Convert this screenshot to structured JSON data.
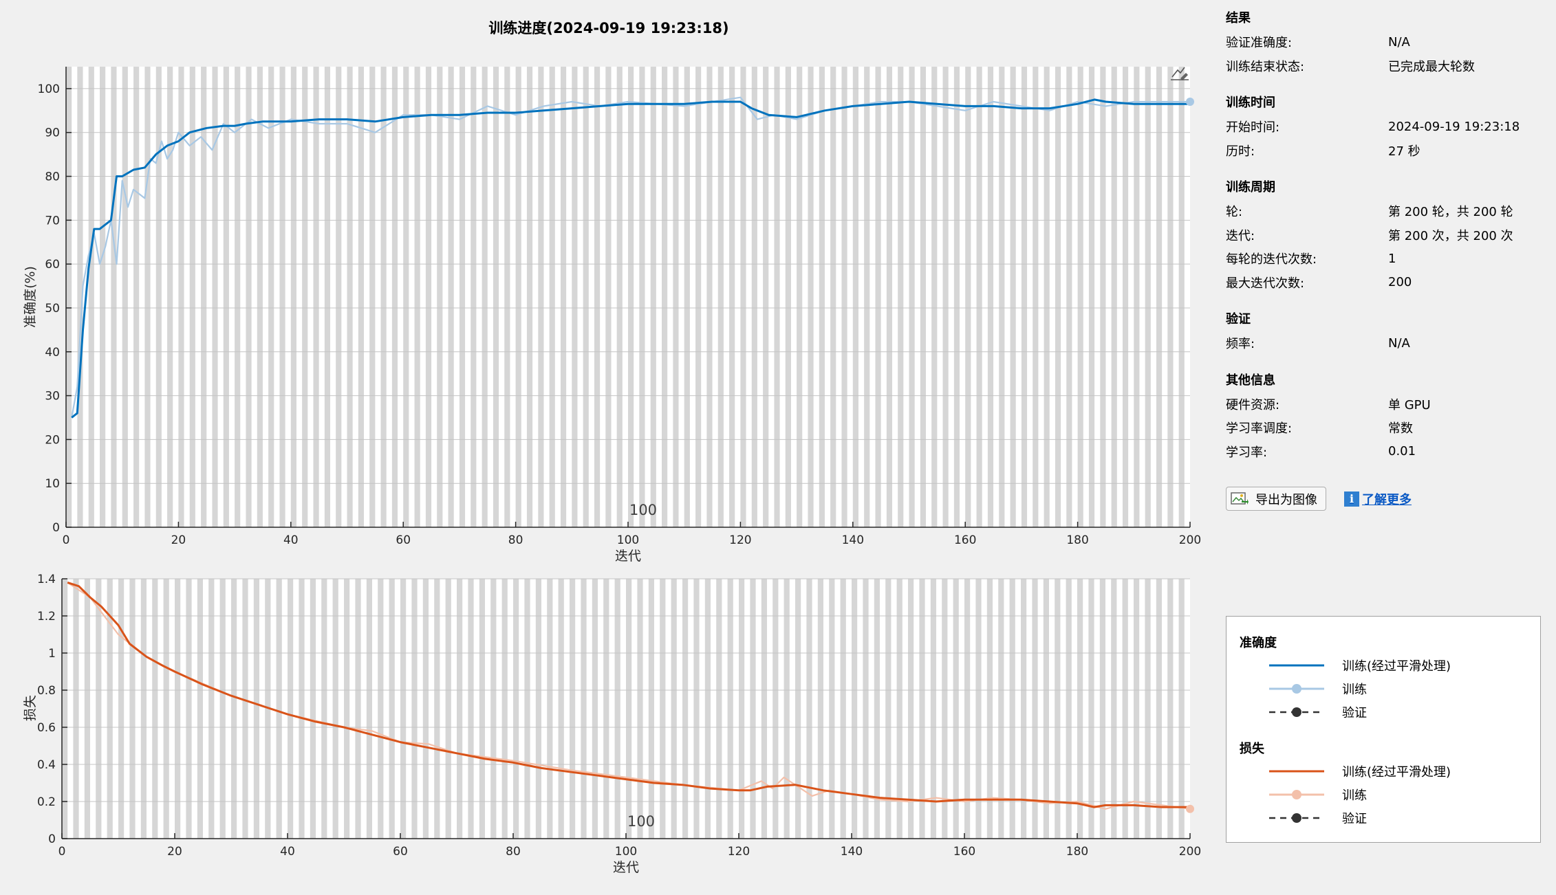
{
  "title": "训练进度(2024-09-19 19:23:18)",
  "colors": {
    "acc_smooth": "#0072bd",
    "acc_raw": "#a8c8e4",
    "loss_smooth": "#d95319",
    "loss_raw": "#f3c0aa",
    "stripe": "#d6d6d6"
  },
  "chart_data": [
    {
      "type": "line",
      "xlabel": "迭代",
      "ylabel": "准确度(%)",
      "xlim": [
        0,
        200
      ],
      "ylim": [
        0,
        105
      ],
      "xticks": [
        0,
        20,
        40,
        60,
        80,
        100,
        120,
        140,
        160,
        180,
        200
      ],
      "yticks": [
        0,
        10,
        20,
        30,
        40,
        50,
        60,
        70,
        80,
        90,
        100
      ],
      "epoch_marker": "100",
      "grid": true,
      "series": [
        {
          "name": "训练(经过平滑处理)",
          "x": [
            1,
            2,
            3,
            4,
            5,
            6,
            8,
            9,
            10,
            12,
            14,
            16,
            18,
            20,
            22,
            25,
            28,
            30,
            32,
            35,
            40,
            45,
            50,
            55,
            60,
            65,
            70,
            75,
            80,
            85,
            90,
            95,
            100,
            105,
            110,
            115,
            120,
            122,
            125,
            130,
            135,
            140,
            145,
            150,
            155,
            160,
            165,
            170,
            175,
            180,
            183,
            185,
            190,
            195,
            200
          ],
          "values": [
            25,
            26,
            45,
            59,
            68,
            68,
            70,
            80,
            80,
            81.5,
            82,
            85,
            87,
            88,
            90,
            91,
            91.5,
            91.5,
            92,
            92.5,
            92.5,
            93,
            93,
            92.5,
            93.5,
            94,
            94,
            94.5,
            94.5,
            95,
            95.5,
            96,
            96.5,
            96.5,
            96.5,
            97,
            97,
            95.5,
            94,
            93.5,
            95,
            96,
            96.5,
            97,
            96.5,
            96,
            96,
            95.5,
            95.5,
            96.5,
            97.5,
            97,
            96.5,
            96.5,
            96.5
          ]
        },
        {
          "name": "训练",
          "x": [
            1,
            2,
            3,
            4,
            5,
            6,
            7,
            8,
            9,
            10,
            11,
            12,
            13,
            14,
            15,
            16,
            17,
            18,
            19,
            20,
            22,
            24,
            26,
            28,
            30,
            33,
            36,
            40,
            45,
            50,
            55,
            60,
            65,
            70,
            75,
            80,
            85,
            90,
            95,
            100,
            110,
            120,
            123,
            126,
            130,
            135,
            140,
            145,
            150,
            155,
            160,
            165,
            170,
            175,
            180,
            185,
            190,
            195,
            200
          ],
          "values": [
            25,
            32,
            55,
            62,
            67,
            60,
            64,
            70,
            60,
            79,
            73,
            77,
            76,
            75,
            84,
            83,
            88,
            84,
            86,
            90,
            87,
            89,
            86,
            92,
            90,
            93,
            91,
            93,
            92,
            92,
            90,
            94,
            94,
            93,
            96,
            94,
            96,
            97,
            96,
            97,
            96,
            98,
            93,
            94,
            93,
            95,
            96,
            97,
            97,
            96,
            95,
            97,
            96,
            95,
            97,
            96,
            97,
            97,
            97
          ]
        },
        {
          "name": "验证",
          "x": [],
          "values": []
        }
      ]
    },
    {
      "type": "line",
      "xlabel": "迭代",
      "ylabel": "损失",
      "xlim": [
        0,
        200
      ],
      "ylim": [
        0,
        1.4
      ],
      "xticks": [
        0,
        20,
        40,
        60,
        80,
        100,
        120,
        140,
        160,
        180,
        200
      ],
      "yticks": [
        0,
        0.2,
        0.4,
        0.6,
        0.8,
        1,
        1.2,
        1.4
      ],
      "ytick_labels": [
        "0",
        "0.2",
        "0.4",
        "0.6",
        "0.8",
        "1",
        "1.2",
        "1.4"
      ],
      "epoch_marker": "100",
      "grid": true,
      "series": [
        {
          "name": "训练(经过平滑处理)",
          "x": [
            1,
            3,
            5,
            7,
            10,
            12,
            15,
            18,
            20,
            25,
            30,
            35,
            40,
            45,
            50,
            55,
            60,
            65,
            70,
            75,
            80,
            85,
            90,
            95,
            100,
            105,
            110,
            115,
            120,
            122,
            125,
            130,
            135,
            140,
            145,
            150,
            155,
            160,
            165,
            170,
            175,
            180,
            183,
            185,
            190,
            195,
            200
          ],
          "values": [
            1.38,
            1.36,
            1.3,
            1.25,
            1.15,
            1.05,
            0.98,
            0.93,
            0.9,
            0.83,
            0.77,
            0.72,
            0.67,
            0.63,
            0.6,
            0.56,
            0.52,
            0.49,
            0.46,
            0.43,
            0.41,
            0.38,
            0.36,
            0.34,
            0.32,
            0.3,
            0.29,
            0.27,
            0.26,
            0.26,
            0.28,
            0.29,
            0.26,
            0.24,
            0.22,
            0.21,
            0.2,
            0.21,
            0.21,
            0.21,
            0.2,
            0.19,
            0.17,
            0.18,
            0.18,
            0.17,
            0.17
          ]
        },
        {
          "name": "训练",
          "x": [
            1,
            5,
            10,
            15,
            20,
            30,
            40,
            50,
            55,
            60,
            65,
            70,
            80,
            90,
            100,
            110,
            120,
            124,
            126,
            128,
            130,
            133,
            136,
            140,
            145,
            150,
            155,
            160,
            165,
            170,
            175,
            180,
            185,
            190,
            195,
            200
          ],
          "values": [
            1.38,
            1.3,
            1.1,
            0.98,
            0.9,
            0.77,
            0.67,
            0.6,
            0.58,
            0.52,
            0.51,
            0.46,
            0.42,
            0.37,
            0.33,
            0.29,
            0.26,
            0.31,
            0.27,
            0.33,
            0.29,
            0.23,
            0.26,
            0.24,
            0.21,
            0.2,
            0.22,
            0.2,
            0.22,
            0.21,
            0.19,
            0.2,
            0.16,
            0.2,
            0.18,
            0.16
          ]
        },
        {
          "name": "验证",
          "x": [],
          "values": []
        }
      ]
    }
  ],
  "panel": {
    "results": {
      "title": "结果",
      "rows": [
        {
          "k": "验证准确度:",
          "v": "N/A"
        },
        {
          "k": "训练结束状态:",
          "v": "已完成最大轮数"
        }
      ]
    },
    "time": {
      "title": "训练时间",
      "rows": [
        {
          "k": "开始时间:",
          "v": "2024-09-19 19:23:18"
        },
        {
          "k": "历时:",
          "v": "27 秒"
        }
      ]
    },
    "cycle": {
      "title": "训练周期",
      "rows": [
        {
          "k": "轮:",
          "v": "第 200 轮，共 200 轮"
        },
        {
          "k": "迭代:",
          "v": "第 200 次，共 200 次"
        },
        {
          "k": "每轮的迭代次数:",
          "v": "1"
        },
        {
          "k": "最大迭代次数:",
          "v": "200"
        }
      ]
    },
    "validation": {
      "title": "验证",
      "rows": [
        {
          "k": "频率:",
          "v": "N/A"
        }
      ]
    },
    "other": {
      "title": "其他信息",
      "rows": [
        {
          "k": "硬件资源:",
          "v": "单 GPU"
        },
        {
          "k": "学习率调度:",
          "v": "常数"
        },
        {
          "k": "学习率:",
          "v": "0.01"
        }
      ]
    }
  },
  "actions": {
    "export_label": "导出为图像",
    "learn_more_label": "了解更多",
    "info_glyph": "i"
  },
  "legend": {
    "acc_title": "准确度",
    "acc_smooth": "训练(经过平滑处理)",
    "acc_train": "训练",
    "acc_val": "验证",
    "loss_title": "损失",
    "loss_smooth": "训练(经过平滑处理)",
    "loss_train": "训练",
    "loss_val": "验证"
  }
}
